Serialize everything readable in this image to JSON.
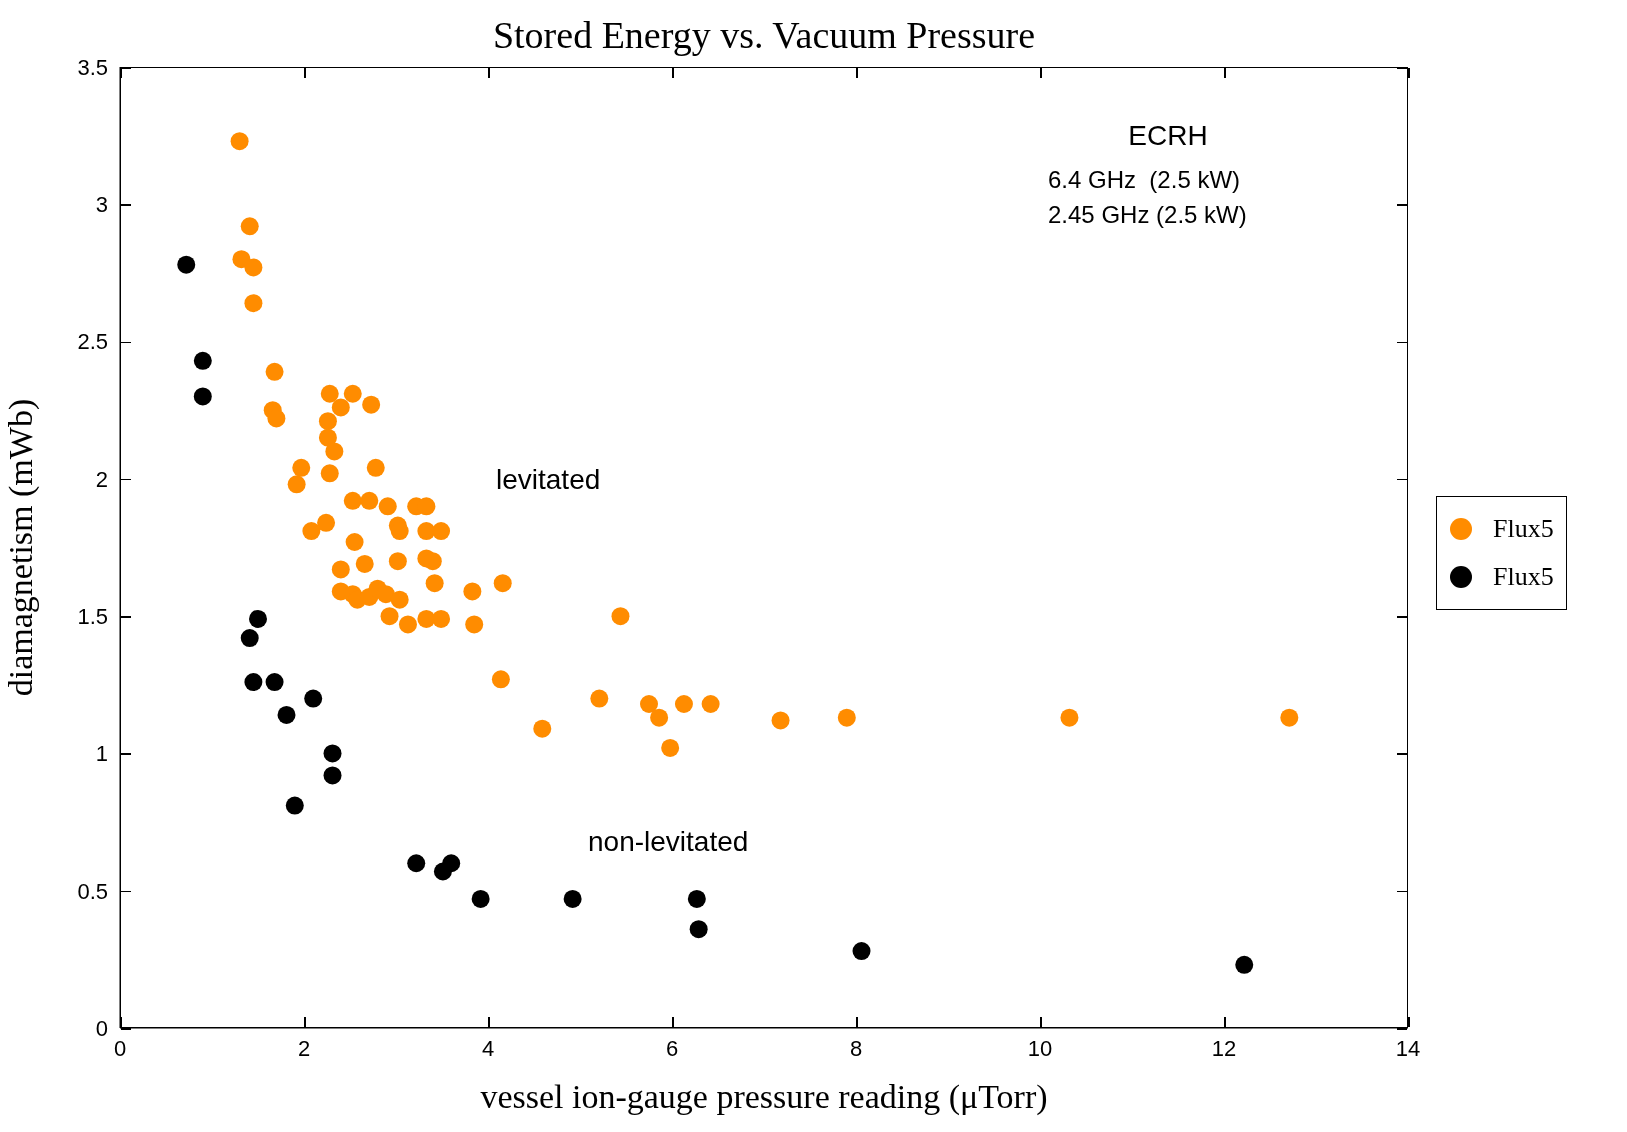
{
  "chart_data": {
    "type": "scatter",
    "title": "Stored Energy vs. Vacuum Pressure",
    "xlabel": "vessel ion-gauge pressure reading (μTorr)",
    "ylabel": "diamagnetism (mWb)",
    "annotations": [
      "ECRH",
      "6.4 GHz  (2.5 kW)",
      "2.45 GHz (2.5 kW)",
      "levitated",
      "non-levitated"
    ],
    "xlim": [
      0,
      14
    ],
    "xticks": [
      0,
      2,
      4,
      6,
      8,
      10,
      12,
      14
    ],
    "ylim": [
      0,
      3.5
    ],
    "yticks": [
      0,
      0.5,
      1,
      1.5,
      2,
      2.5,
      3,
      3.5
    ],
    "legend": "right",
    "marker": "circle",
    "grid": false,
    "series": [
      {
        "name": "Flux5",
        "color": "#ff8c00",
        "x": [
          1.3,
          1.41,
          1.32,
          1.45,
          1.45,
          1.68,
          1.66,
          1.7,
          2.28,
          2.53,
          2.73,
          2.4,
          2.26,
          2.26,
          2.33,
          1.97,
          1.92,
          2.28,
          2.78,
          2.08,
          2.24,
          2.53,
          2.71,
          2.91,
          3.22,
          3.33,
          3.02,
          3.04,
          2.55,
          2.4,
          2.66,
          3.02,
          3.33,
          3.4,
          3.33,
          3.49,
          3.42,
          2.4,
          2.53,
          2.58,
          2.71,
          2.8,
          2.89,
          3.04,
          2.93,
          3.13,
          3.33,
          3.49,
          3.83,
          3.85,
          4.16,
          4.14,
          4.59,
          5.44,
          5.21,
          5.75,
          5.86,
          6.13,
          6.42,
          5.98,
          7.18,
          7.9,
          10.32,
          12.71
        ],
        "values": [
          3.23,
          2.92,
          2.8,
          2.77,
          2.64,
          2.39,
          2.25,
          2.22,
          2.31,
          2.31,
          2.27,
          2.26,
          2.21,
          2.15,
          2.1,
          2.04,
          1.98,
          2.02,
          2.04,
          1.81,
          1.84,
          1.92,
          1.92,
          1.9,
          1.9,
          1.9,
          1.83,
          1.81,
          1.77,
          1.67,
          1.69,
          1.7,
          1.71,
          1.7,
          1.81,
          1.81,
          1.62,
          1.59,
          1.58,
          1.56,
          1.57,
          1.6,
          1.58,
          1.56,
          1.5,
          1.47,
          1.49,
          1.49,
          1.59,
          1.47,
          1.62,
          1.27,
          1.09,
          1.5,
          1.2,
          1.18,
          1.13,
          1.18,
          1.18,
          1.02,
          1.12,
          1.13,
          1.13,
          1.13
        ]
      },
      {
        "name": "Flux5",
        "color": "#000000",
        "x": [
          0.72,
          0.9,
          0.9,
          1.5,
          1.41,
          1.45,
          1.68,
          2.1,
          1.81,
          2.31,
          2.31,
          1.9,
          3.22,
          3.51,
          3.6,
          3.92,
          4.92,
          6.27,
          6.29,
          8.06,
          12.22
        ],
        "values": [
          2.78,
          2.43,
          2.3,
          1.49,
          1.42,
          1.26,
          1.26,
          1.2,
          1.14,
          1.0,
          0.92,
          0.81,
          0.6,
          0.57,
          0.6,
          0.47,
          0.47,
          0.47,
          0.36,
          0.28,
          0.23
        ]
      }
    ]
  }
}
